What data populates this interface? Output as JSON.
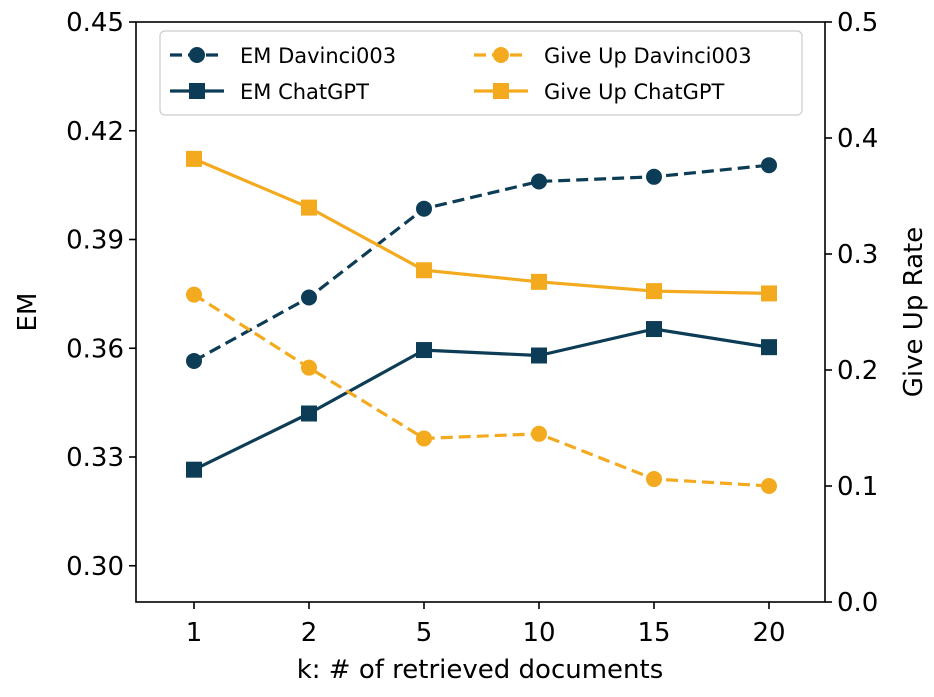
{
  "chart_data": {
    "type": "line",
    "title": "",
    "xlabel": "k: # of retrieved documents",
    "ylabel_left": "EM",
    "ylabel_right": "Give Up Rate",
    "categories": [
      "1",
      "2",
      "5",
      "10",
      "15",
      "20"
    ],
    "y_left": {
      "ylim": [
        0.29,
        0.45
      ],
      "ticks": [
        0.3,
        0.33,
        0.36,
        0.39,
        0.42,
        0.45
      ],
      "tick_labels": [
        "0.30",
        "0.33",
        "0.36",
        "0.39",
        "0.42",
        "0.45"
      ]
    },
    "y_right": {
      "ylim": [
        0.0,
        0.5
      ],
      "ticks": [
        0.0,
        0.1,
        0.2,
        0.3,
        0.4,
        0.5
      ],
      "tick_labels": [
        "0.0",
        "0.1",
        "0.2",
        "0.3",
        "0.4",
        "0.5"
      ]
    },
    "grid": false,
    "legend": {
      "placement": "top",
      "columns": 2
    },
    "series": [
      {
        "name": "EM Davinci003",
        "axis": "left",
        "color": "#0d3d56",
        "line": "dashed",
        "marker": "circle",
        "values": [
          0.3565,
          0.374,
          0.3985,
          0.406,
          0.4073,
          0.4105
        ]
      },
      {
        "name": "EM ChatGPT",
        "axis": "left",
        "color": "#0d3d56",
        "line": "solid",
        "marker": "square",
        "values": [
          0.3265,
          0.342,
          0.3595,
          0.358,
          0.3653,
          0.3603
        ]
      },
      {
        "name": "Give Up Davinci003",
        "axis": "right",
        "color": "#f4aa1e",
        "line": "dashed",
        "marker": "circle",
        "values": [
          0.265,
          0.202,
          0.141,
          0.145,
          0.106,
          0.1
        ]
      },
      {
        "name": "Give Up ChatGPT",
        "axis": "right",
        "color": "#f4aa1e",
        "line": "solid",
        "marker": "square",
        "values": [
          0.382,
          0.34,
          0.286,
          0.276,
          0.268,
          0.266
        ]
      }
    ]
  }
}
